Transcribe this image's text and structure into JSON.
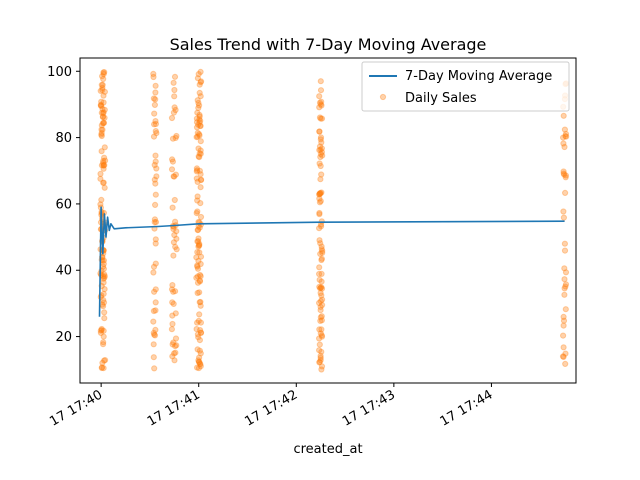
{
  "chart_data": {
    "type": "scatter",
    "title": "Sales Trend with 7-Day Moving Average",
    "xlabel": "created_at",
    "ylabel": "",
    "xlim": [
      "17 17:39:47",
      "17 17:44:52"
    ],
    "ylim": [
      6,
      104
    ],
    "x_ticks": [
      "17 17:40",
      "17 17:41",
      "17 17:42",
      "17 17:43",
      "17 17:44"
    ],
    "y_ticks": [
      20,
      40,
      60,
      80,
      100
    ],
    "grid": false,
    "legend_position": "top-right",
    "colors": {
      "moving_average": "#1f77b4",
      "daily_sales": "#ff7f0e"
    },
    "series": [
      {
        "name": "7-Day Moving Average",
        "type": "line",
        "points": [
          {
            "x": "17 17:39:59",
            "y": 26
          },
          {
            "x": "17 17:40:00",
            "y": 59
          },
          {
            "x": "17 17:40:01",
            "y": 45
          },
          {
            "x": "17 17:40:02",
            "y": 57
          },
          {
            "x": "17 17:40:03",
            "y": 50
          },
          {
            "x": "17 17:40:04",
            "y": 56
          },
          {
            "x": "17 17:40:05",
            "y": 52
          },
          {
            "x": "17 17:40:06",
            "y": 54
          },
          {
            "x": "17 17:40:08",
            "y": 52.5
          },
          {
            "x": "17 17:40:15",
            "y": 52.8
          },
          {
            "x": "17 17:40:35",
            "y": 53.2
          },
          {
            "x": "17 17:40:45",
            "y": 53.5
          },
          {
            "x": "17 17:41:00",
            "y": 54.0
          },
          {
            "x": "17 17:42:15",
            "y": 54.5
          },
          {
            "x": "17 17:44:45",
            "y": 54.8
          }
        ]
      },
      {
        "name": "Daily Sales",
        "type": "scatter",
        "clusters": [
          {
            "x": "17 17:40:01",
            "n": 120,
            "spread_seconds": 3
          },
          {
            "x": "17 17:40:33",
            "n": 45,
            "spread_seconds": 2
          },
          {
            "x": "17 17:40:45",
            "n": 50,
            "spread_seconds": 3
          },
          {
            "x": "17 17:41:00",
            "n": 110,
            "spread_seconds": 3
          },
          {
            "x": "17 17:42:15",
            "n": 90,
            "spread_seconds": 2
          },
          {
            "x": "17 17:44:45",
            "n": 40,
            "spread_seconds": 2
          }
        ],
        "y_range": [
          10,
          100
        ]
      }
    ]
  }
}
